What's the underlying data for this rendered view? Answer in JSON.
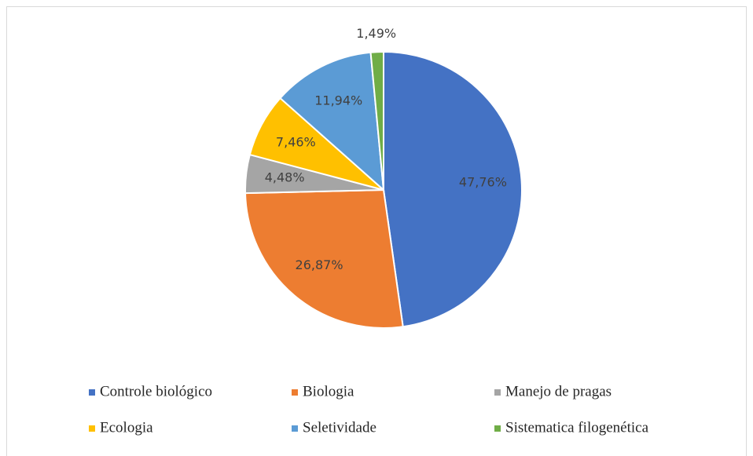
{
  "chart_data": {
    "type": "pie",
    "categories": [
      "Controle biológico",
      "Biologia",
      "Manejo de pragas",
      "Ecologia",
      "Seletividade",
      "Sistematica filogenética"
    ],
    "values": [
      47.76,
      26.87,
      4.48,
      7.46,
      11.94,
      1.49
    ],
    "value_labels": [
      "47,76%",
      "26,87%",
      "4,48%",
      "7,46%",
      "11,94%",
      "1,49%"
    ],
    "colors": [
      "#4472c4",
      "#ed7d31",
      "#a5a5a5",
      "#ffc000",
      "#5b9bd5",
      "#70ad47"
    ],
    "legend": "bottom"
  }
}
